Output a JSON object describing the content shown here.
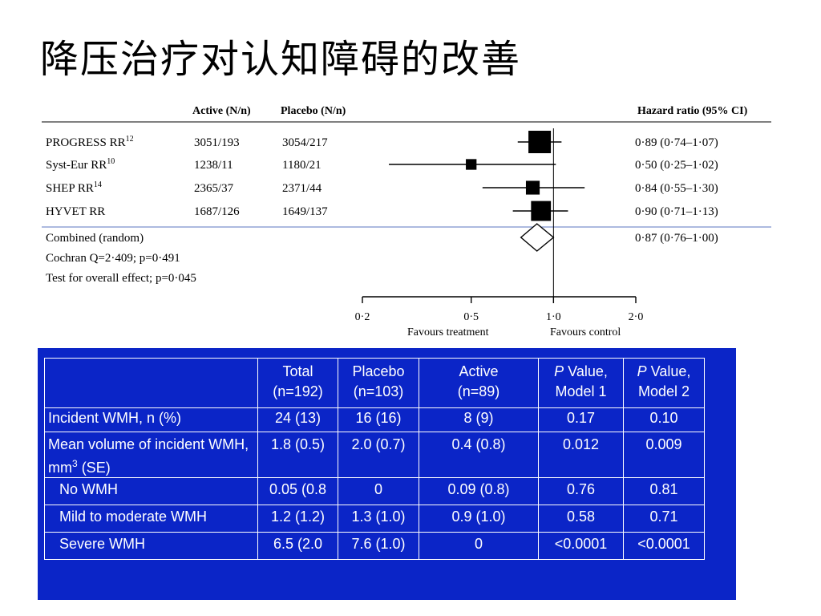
{
  "slide": {
    "title": "降压治疗对认知障碍的改善"
  },
  "chart_data": [
    {
      "type": "forest",
      "columns": {
        "study": "",
        "active": "Active (N/n)",
        "placebo": "Placebo (N/n)",
        "hr": "Hazard ratio (95% CI)"
      },
      "studies": [
        {
          "name": "PROGRESS RR",
          "ref": "12",
          "active": "3051/193",
          "placebo": "3054/217",
          "hr": 0.89,
          "lo": 0.74,
          "hi": 1.07,
          "hr_text": "0·89 (0·74–1·07)",
          "weight": 1.0
        },
        {
          "name": "Syst-Eur RR",
          "ref": "10",
          "active": "1238/11",
          "placebo": "1180/21",
          "hr": 0.5,
          "lo": 0.25,
          "hi": 1.02,
          "hr_text": "0·50 (0·25–1·02)",
          "weight": 0.15
        },
        {
          "name": "SHEP RR",
          "ref": "14",
          "active": "2365/37",
          "placebo": "2371/44",
          "hr": 0.84,
          "lo": 0.55,
          "hi": 1.3,
          "hr_text": "0·84 (0·55–1·30)",
          "weight": 0.3
        },
        {
          "name": "HYVET RR",
          "ref": "",
          "active": "1687/126",
          "placebo": "1649/137",
          "hr": 0.9,
          "lo": 0.71,
          "hi": 1.13,
          "hr_text": "0·90 (0·71–1·13)",
          "weight": 0.75
        }
      ],
      "combined": {
        "label": "Combined (random)",
        "hr": 0.87,
        "lo": 0.76,
        "hi": 1.0,
        "hr_text": "0·87 (0·76–1·00)"
      },
      "stats": [
        "Cochran Q=2·409; p=0·491",
        "Test for overall effect; p=0·045"
      ],
      "x_scale": "log",
      "xlim": [
        0.2,
        2.0
      ],
      "ticks": [
        {
          "value": 0.2,
          "label": "0·2"
        },
        {
          "value": 0.5,
          "label": "0·5"
        },
        {
          "value": 1.0,
          "label": "1·0"
        },
        {
          "value": 2.0,
          "label": "2·0"
        }
      ],
      "reference_line": 1.0,
      "xlabel_left": "Favours treatment",
      "xlabel_right": "Favours control"
    },
    {
      "type": "table",
      "header": [
        [
          "",
          ""
        ],
        [
          "Total",
          "(n=192)"
        ],
        [
          "Placebo",
          "(n=103)"
        ],
        [
          "Active",
          "(n=89)"
        ],
        [
          "P Value,",
          "Model 1"
        ],
        [
          "P Value,",
          "Model 2"
        ]
      ],
      "rows": [
        {
          "label": "Incident WMH, n (%)",
          "values": [
            "24 (13)",
            "16 (16)",
            "8 (9)",
            "0.17",
            "0.10"
          ]
        },
        {
          "label": "Mean volume of incident WMH, mm",
          "label_sup": "3",
          "label_suffix": " (SE)",
          "values": [
            "1.8 (0.5)",
            "2.0 (0.7)",
            "0.4 (0.8)",
            "0.012",
            "0.009"
          ]
        },
        {
          "label": "No WMH",
          "values": [
            "0.05 (0.8",
            "0",
            "0.09 (0.8)",
            "0.76",
            "0.81"
          ]
        },
        {
          "label": "Mild to moderate WMH",
          "values": [
            "1.2 (1.2)",
            "1.3 (1.0)",
            "0.9 (1.0)",
            "0.58",
            "0.71"
          ]
        },
        {
          "label": "Severe WMH",
          "values": [
            "6.5 (2.0",
            "7.6 (1.0)",
            "0",
            "<0.0001",
            "<0.0001"
          ]
        }
      ],
      "colors": {
        "background": "#0b25c7",
        "text": "#ffffff",
        "grid": "#ffffff"
      }
    }
  ]
}
